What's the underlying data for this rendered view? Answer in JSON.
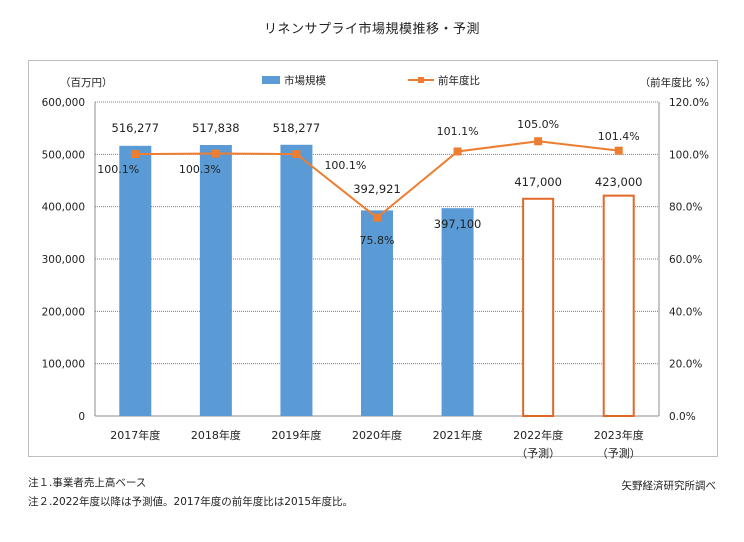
{
  "title": "リネンサプライ市場規模推移・予測",
  "units": {
    "left": "（百万円）",
    "right": "（前年度比 %）"
  },
  "legend": {
    "bar": "市場規模",
    "line": "前年度比"
  },
  "colors": {
    "bar": "#5b9bd5",
    "forecast_border": "#e2682a",
    "line": "#ed7d31",
    "grid": "#7f7f7f"
  },
  "chart_data": {
    "type": "bar",
    "categories": [
      "2017年度",
      "2018年度",
      "2019年度",
      "2020年度",
      "2021年度",
      "2022年度",
      "2023年度"
    ],
    "category_sublabels": [
      "",
      "",
      "",
      "",
      "",
      "（予測）",
      "（予測）"
    ],
    "series": [
      {
        "name": "市場規模",
        "axis": "left",
        "values": [
          516277,
          517838,
          518277,
          392921,
          397100,
          417000,
          423000
        ],
        "labels": [
          "516,277",
          "517,838",
          "518,277",
          "392,921",
          "397,100",
          "417,000",
          "423,000"
        ],
        "forecast": [
          false,
          false,
          false,
          false,
          false,
          true,
          true
        ]
      },
      {
        "name": "前年度比",
        "axis": "right",
        "type": "line",
        "values": [
          100.1,
          100.3,
          100.1,
          75.8,
          101.1,
          105.0,
          101.4
        ],
        "labels": [
          "100.1%",
          "100.3%",
          "100.1%",
          "75.8%",
          "101.1%",
          "105.0%",
          "101.4%"
        ]
      }
    ],
    "left_axis": {
      "ylim": [
        0,
        600000
      ],
      "ticks": [
        "0",
        "100,000",
        "200,000",
        "300,000",
        "400,000",
        "500,000",
        "600,000"
      ]
    },
    "right_axis": {
      "ylim": [
        0,
        120
      ],
      "ticks": [
        "0.0%",
        "20.0%",
        "40.0%",
        "60.0%",
        "80.0%",
        "100.0%",
        "120.0%"
      ]
    },
    "grid": true,
    "legend_position": "top"
  },
  "notes": [
    "注１.事業者売上高ベース",
    "注２.2022年度以降は予測値。2017年度の前年度比は2015年度比。"
  ],
  "source": "矢野経済研究所調べ"
}
